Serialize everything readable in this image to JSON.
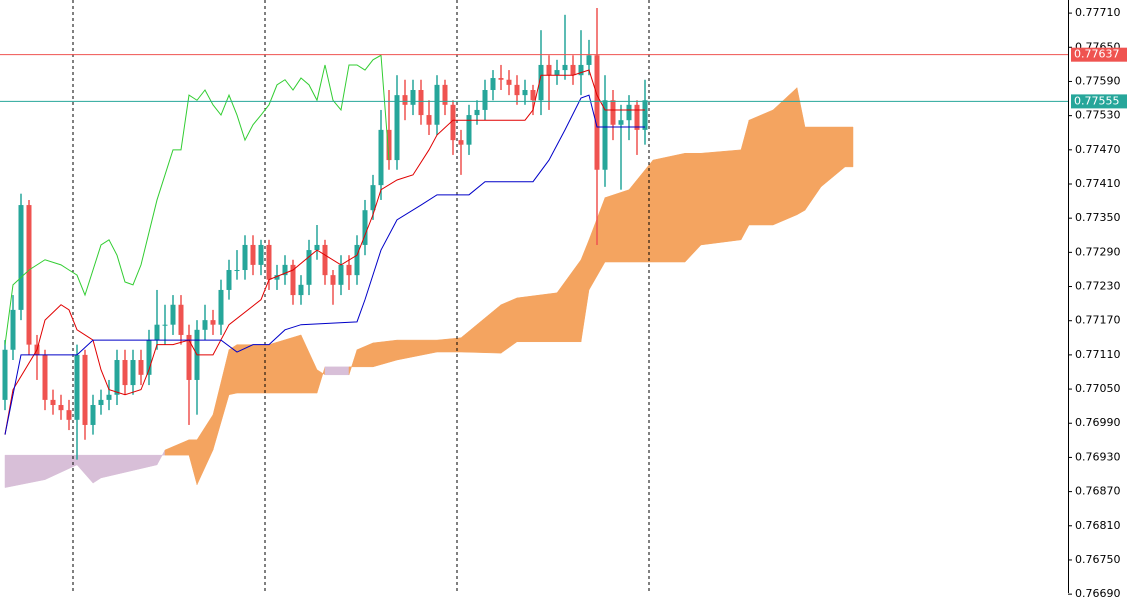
{
  "chart_data": {
    "type": "candlestick",
    "ylim": [
      0.76692,
      0.77733
    ],
    "yticks": [
      {
        "value": 0.7771,
        "label": "0.77710"
      },
      {
        "value": 0.7765,
        "label": "0.77650"
      },
      {
        "value": 0.7759,
        "label": "0.77590"
      },
      {
        "value": 0.7753,
        "label": "0.77530"
      },
      {
        "value": 0.7747,
        "label": "0.77470"
      },
      {
        "value": 0.7741,
        "label": "0.77410"
      },
      {
        "value": 0.7735,
        "label": "0.77350"
      },
      {
        "value": 0.7729,
        "label": "0.77290"
      },
      {
        "value": 0.7723,
        "label": "0.77230"
      },
      {
        "value": 0.7717,
        "label": "0.77170"
      },
      {
        "value": 0.7711,
        "label": "0.77110"
      },
      {
        "value": 0.7705,
        "label": "0.77050"
      },
      {
        "value": 0.7699,
        "label": "0.76990"
      },
      {
        "value": 0.7693,
        "label": "0.76930"
      },
      {
        "value": 0.7687,
        "label": "0.76870"
      },
      {
        "value": 0.7681,
        "label": "0.76810"
      },
      {
        "value": 0.7675,
        "label": "0.76750"
      },
      {
        "value": 0.7669,
        "label": "0.76690"
      }
    ],
    "separators": [
      9,
      33,
      57,
      81
    ],
    "up_color": "#26a69a",
    "down_color": "#ef5350",
    "candles": [
      [
        0.77031,
        0.77136,
        0.77013,
        0.77119
      ],
      [
        0.77119,
        0.77215,
        0.77101,
        0.77189
      ],
      [
        0.77189,
        0.77393,
        0.77171,
        0.77373
      ],
      [
        0.77373,
        0.77382,
        0.7711,
        0.77128
      ],
      [
        0.77128,
        0.77145,
        0.77066,
        0.7711
      ],
      [
        0.7711,
        0.77119,
        0.77013,
        0.77031
      ],
      [
        0.77031,
        0.77049,
        0.77005,
        0.77022
      ],
      [
        0.77022,
        0.7704,
        0.76996,
        0.77013
      ],
      [
        0.77013,
        0.77031,
        0.76978,
        0.76996
      ],
      [
        0.76996,
        0.77128,
        0.76926,
        0.7711
      ],
      [
        0.7711,
        0.77119,
        0.76961,
        0.76987
      ],
      [
        0.76987,
        0.7704,
        0.7697,
        0.77022
      ],
      [
        0.77022,
        0.77049,
        0.77005,
        0.77031
      ],
      [
        0.77031,
        0.77066,
        0.77013,
        0.7704
      ],
      [
        0.7704,
        0.77119,
        0.77022,
        0.77101
      ],
      [
        0.77101,
        0.77119,
        0.7704,
        0.77057
      ],
      [
        0.77057,
        0.77119,
        0.7704,
        0.77101
      ],
      [
        0.77101,
        0.77119,
        0.77057,
        0.77075
      ],
      [
        0.77075,
        0.77154,
        0.77057,
        0.77136
      ],
      [
        0.77136,
        0.77224,
        0.77119,
        0.77163
      ],
      [
        0.77163,
        0.77198,
        0.77128,
        0.77163
      ],
      [
        0.77163,
        0.77215,
        0.77145,
        0.77198
      ],
      [
        0.77198,
        0.77215,
        0.77128,
        0.77145
      ],
      [
        0.77145,
        0.77163,
        0.76987,
        0.77066
      ],
      [
        0.77066,
        0.77171,
        0.77005,
        0.77154
      ],
      [
        0.77154,
        0.77198,
        0.77136,
        0.77171
      ],
      [
        0.77171,
        0.77189,
        0.77145,
        0.77163
      ],
      [
        0.77163,
        0.77242,
        0.77145,
        0.77224
      ],
      [
        0.77224,
        0.77277,
        0.77207,
        0.77259
      ],
      [
        0.77259,
        0.77294,
        0.77242,
        0.77259
      ],
      [
        0.77259,
        0.7732,
        0.77242,
        0.77303
      ],
      [
        0.77303,
        0.7732,
        0.7725,
        0.77268
      ],
      [
        0.77268,
        0.77312,
        0.7725,
        0.77303
      ],
      [
        0.77303,
        0.77312,
        0.77224,
        0.77242
      ],
      [
        0.77242,
        0.77268,
        0.77224,
        0.7725
      ],
      [
        0.7725,
        0.77285,
        0.77233,
        0.77268
      ],
      [
        0.77268,
        0.77277,
        0.77198,
        0.77215
      ],
      [
        0.77215,
        0.7725,
        0.77198,
        0.77233
      ],
      [
        0.77233,
        0.77312,
        0.77215,
        0.77294
      ],
      [
        0.77294,
        0.77338,
        0.77277,
        0.77303
      ],
      [
        0.77303,
        0.77312,
        0.77233,
        0.7725
      ],
      [
        0.7725,
        0.77259,
        0.77198,
        0.77233
      ],
      [
        0.77233,
        0.77285,
        0.77215,
        0.77268
      ],
      [
        0.77268,
        0.77285,
        0.77224,
        0.7725
      ],
      [
        0.7725,
        0.7732,
        0.77233,
        0.77303
      ],
      [
        0.77303,
        0.77382,
        0.77285,
        0.77364
      ],
      [
        0.77364,
        0.77426,
        0.77347,
        0.77408
      ],
      [
        0.77408,
        0.7754,
        0.77382,
        0.77505
      ],
      [
        0.77505,
        0.77575,
        0.77435,
        0.77452
      ],
      [
        0.77452,
        0.77601,
        0.77435,
        0.77566
      ],
      [
        0.77566,
        0.77593,
        0.77522,
        0.77549
      ],
      [
        0.77549,
        0.77593,
        0.77531,
        0.77575
      ],
      [
        0.77575,
        0.77593,
        0.77514,
        0.77531
      ],
      [
        0.77531,
        0.77557,
        0.77496,
        0.77514
      ],
      [
        0.77514,
        0.77601,
        0.77496,
        0.77584
      ],
      [
        0.77584,
        0.77593,
        0.77531,
        0.77549
      ],
      [
        0.77549,
        0.77557,
        0.77461,
        0.77487
      ],
      [
        0.77487,
        0.77505,
        0.77426,
        0.77479
      ],
      [
        0.77479,
        0.77549,
        0.77461,
        0.77531
      ],
      [
        0.77531,
        0.77557,
        0.77514,
        0.7754
      ],
      [
        0.7754,
        0.77593,
        0.77522,
        0.77575
      ],
      [
        0.77575,
        0.7761,
        0.77557,
        0.77596
      ],
      [
        0.77596,
        0.77619,
        0.77575,
        0.77593
      ],
      [
        0.77593,
        0.7761,
        0.77566,
        0.77584
      ],
      [
        0.77584,
        0.77601,
        0.77549,
        0.77566
      ],
      [
        0.77566,
        0.77593,
        0.77549,
        0.77575
      ],
      [
        0.77575,
        0.77584,
        0.77531,
        0.77557
      ],
      [
        0.77557,
        0.7768,
        0.77531,
        0.77619
      ],
      [
        0.77619,
        0.77636,
        0.7754,
        0.77601
      ],
      [
        0.77601,
        0.77628,
        0.77584,
        0.7761
      ],
      [
        0.7761,
        0.77707,
        0.77593,
        0.77619
      ],
      [
        0.77619,
        0.77636,
        0.77584,
        0.77601
      ],
      [
        0.77601,
        0.7768,
        0.77566,
        0.77619
      ],
      [
        0.77619,
        0.77663,
        0.77601,
        0.77636
      ],
      [
        0.77636,
        0.77719,
        0.77303,
        0.77435
      ],
      [
        0.77435,
        0.77601,
        0.77405,
        0.77557
      ],
      [
        0.77557,
        0.77575,
        0.77487,
        0.77514
      ],
      [
        0.77514,
        0.77549,
        0.774,
        0.77522
      ],
      [
        0.77522,
        0.77566,
        0.77487,
        0.77549
      ],
      [
        0.77549,
        0.77557,
        0.77461,
        0.77505
      ],
      [
        0.77505,
        0.77593,
        0.77479,
        0.77557
      ]
    ],
    "tenkan": {
      "color": "#e00000",
      "x": [
        0,
        1,
        4,
        5,
        7,
        8,
        9,
        11,
        12,
        13,
        15,
        17,
        18,
        19,
        21,
        23,
        24,
        26,
        28,
        32,
        33,
        36,
        39,
        42,
        44,
        46,
        47,
        49,
        51,
        53,
        54,
        56,
        65,
        66,
        67,
        71,
        73,
        74,
        75,
        80
      ],
      "values": [
        0.7697,
        0.77049,
        0.77119,
        0.77171,
        0.77198,
        0.77189,
        0.77154,
        0.77136,
        0.77084,
        0.77049,
        0.7704,
        0.77049,
        0.77084,
        0.77128,
        0.77128,
        0.77136,
        0.7711,
        0.7711,
        0.77163,
        0.77207,
        0.77242,
        0.77259,
        0.77294,
        0.77268,
        0.77285,
        0.77356,
        0.774,
        0.77417,
        0.77426,
        0.7747,
        0.77496,
        0.77522,
        0.77522,
        0.7754,
        0.77601,
        0.77601,
        0.7761,
        0.77566,
        0.7754,
        0.7754
      ]
    },
    "kijun": {
      "color": "#0000c8",
      "x": [
        0,
        1,
        2,
        9,
        11,
        27,
        29,
        31,
        33,
        35,
        37,
        44,
        45,
        47,
        49,
        52,
        54,
        58,
        60,
        66,
        68,
        70,
        72,
        73,
        74,
        80
      ],
      "values": [
        0.7697,
        0.7704,
        0.7711,
        0.7711,
        0.77136,
        0.77136,
        0.77115,
        0.77128,
        0.77128,
        0.77154,
        0.77163,
        0.77168,
        0.77207,
        0.77294,
        0.77347,
        0.77373,
        0.77391,
        0.77391,
        0.77414,
        0.77414,
        0.77452,
        0.77505,
        0.77561,
        0.77566,
        0.7751,
        0.7751
      ]
    },
    "chikou": {
      "color": "#32cd32",
      "x": [
        0,
        1,
        3,
        5,
        7,
        8,
        9,
        10,
        12,
        13,
        14,
        15,
        16,
        17,
        19,
        21,
        22,
        23,
        24,
        25,
        26,
        27,
        28,
        29,
        30,
        31,
        32,
        33,
        34,
        35,
        36,
        37,
        38,
        39,
        40,
        41,
        42,
        43,
        44,
        45,
        46,
        47,
        48
      ],
      "values": [
        0.77128,
        0.77233,
        0.77259,
        0.77277,
        0.77268,
        0.77259,
        0.7725,
        0.77215,
        0.77303,
        0.77312,
        0.77285,
        0.77238,
        0.77233,
        0.77268,
        0.77382,
        0.7747,
        0.7747,
        0.77566,
        0.77557,
        0.77575,
        0.77549,
        0.77531,
        0.77566,
        0.77531,
        0.77487,
        0.77514,
        0.77531,
        0.77549,
        0.77584,
        0.77593,
        0.77575,
        0.77596,
        0.77584,
        0.77557,
        0.77619,
        0.77557,
        0.7754,
        0.77619,
        0.77619,
        0.7761,
        0.77628,
        0.77636,
        0.77452
      ]
    },
    "cloud": {
      "up_color": "#f4a460",
      "down_color": "#d8bfd8",
      "x": [
        0,
        5,
        9,
        11,
        12,
        19,
        20,
        23,
        24,
        26,
        28,
        29,
        33,
        37,
        39,
        40,
        43,
        44,
        46,
        49,
        54,
        57,
        62,
        64,
        69,
        72,
        73,
        75,
        78,
        81,
        85,
        87,
        92,
        93,
        96,
        99,
        100,
        102,
        105,
        106
      ],
      "span_a": [
        0.76877,
        0.76891,
        0.76917,
        0.76885,
        0.76894,
        0.76917,
        0.76943,
        0.76961,
        0.76961,
        0.77005,
        0.77119,
        0.77128,
        0.77128,
        0.77145,
        0.77084,
        0.77075,
        0.77075,
        0.77119,
        0.77131,
        0.77136,
        0.77136,
        0.7714,
        0.77198,
        0.7721,
        0.77219,
        0.77277,
        0.77312,
        0.77386,
        0.774,
        0.77452,
        0.77464,
        0.77464,
        0.7747,
        0.77522,
        0.7754,
        0.77579,
        0.7751,
        0.7751,
        0.7751,
        0.7751
      ],
      "span_b": [
        0.76934,
        0.76934,
        0.76934,
        0.76934,
        0.76934,
        0.76934,
        0.76934,
        0.76934,
        0.76882,
        0.76943,
        0.7704,
        0.77043,
        0.77043,
        0.77043,
        0.77043,
        0.77089,
        0.77089,
        0.77089,
        0.77089,
        0.77101,
        0.77115,
        0.77115,
        0.77113,
        0.77133,
        0.77133,
        0.77133,
        0.77224,
        0.77273,
        0.77273,
        0.77273,
        0.77273,
        0.77303,
        0.77312,
        0.77338,
        0.77338,
        0.77356,
        0.77364,
        0.77405,
        0.7744,
        0.7744
      ]
    },
    "price_lines": [
      {
        "value": 0.77637,
        "label": "0.77637",
        "color": "#ef5350"
      },
      {
        "value": 0.77555,
        "label": "0.77555",
        "color": "#26a69a"
      }
    ]
  }
}
